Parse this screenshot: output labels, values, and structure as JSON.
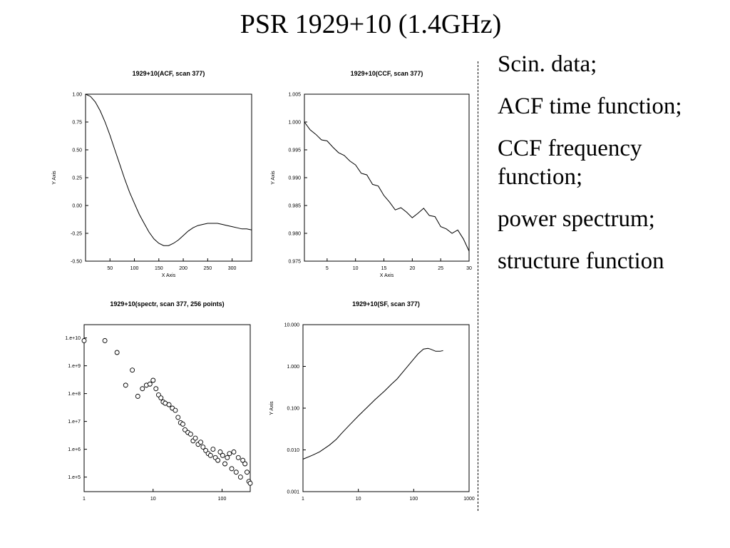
{
  "slide": {
    "title": "PSR 1929+10 (1.4GHz)"
  },
  "notes": [
    "Scin. data;",
    "ACF time function;",
    "CCF frequency function;",
    "power spectrum;",
    "structure function"
  ],
  "chart_data": [
    {
      "id": "acf",
      "type": "line",
      "title": "1929+10(ACF, scan 377)",
      "xlabel": "X Axis",
      "ylabel": "Y Axis",
      "xscale": "linear",
      "yscale": "linear",
      "xlim": [
        0,
        340
      ],
      "ylim": [
        -0.5,
        1.0
      ],
      "xticks": [
        50,
        100,
        150,
        200,
        250,
        300
      ],
      "xtick_labels": [
        "50",
        "100",
        "150",
        "200",
        "250",
        "300"
      ],
      "yticks": [
        -0.5,
        -0.25,
        0.0,
        0.25,
        0.5,
        0.75,
        1.0
      ],
      "ytick_labels": [
        "-0.50",
        "-0.25",
        "0.00",
        "0.25",
        "0.50",
        "0.75",
        "1.00"
      ],
      "grid": false,
      "series": [
        {
          "x": [
            0,
            10,
            20,
            30,
            40,
            50,
            60,
            70,
            80,
            90,
            100,
            110,
            120,
            130,
            140,
            150,
            160,
            170,
            180,
            190,
            200,
            210,
            220,
            230,
            240,
            250,
            260,
            270,
            280,
            290,
            300,
            310,
            320,
            330,
            340
          ],
          "y": [
            1.0,
            0.98,
            0.93,
            0.85,
            0.75,
            0.63,
            0.5,
            0.37,
            0.24,
            0.12,
            0.02,
            -0.08,
            -0.16,
            -0.24,
            -0.3,
            -0.34,
            -0.36,
            -0.36,
            -0.34,
            -0.31,
            -0.27,
            -0.23,
            -0.2,
            -0.18,
            -0.17,
            -0.16,
            -0.16,
            -0.16,
            -0.17,
            -0.18,
            -0.19,
            -0.2,
            -0.21,
            -0.21,
            -0.22
          ]
        }
      ]
    },
    {
      "id": "ccf",
      "type": "line",
      "title": "1929+10(CCF, scan 377)",
      "xlabel": "X Axis",
      "ylabel": "Y Axis",
      "xscale": "linear",
      "yscale": "linear",
      "xlim": [
        1,
        30
      ],
      "ylim": [
        0.975,
        1.005
      ],
      "xticks": [
        5,
        10,
        15,
        20,
        25,
        30
      ],
      "xtick_labels": [
        "5",
        "10",
        "15",
        "20",
        "25",
        "30"
      ],
      "yticks": [
        0.975,
        0.98,
        0.985,
        0.99,
        0.995,
        1.0,
        1.005
      ],
      "ytick_labels": [
        "0.975",
        "0.980",
        "0.985",
        "0.990",
        "0.995",
        "1.000",
        "1.005"
      ],
      "grid": false,
      "series": [
        {
          "x": [
            1,
            2,
            3,
            4,
            5,
            6,
            7,
            8,
            9,
            10,
            11,
            12,
            13,
            14,
            15,
            16,
            17,
            18,
            19,
            20,
            21,
            22,
            23,
            24,
            25,
            26,
            27,
            28,
            29,
            30
          ],
          "y": [
            1.0,
            0.9986,
            0.9978,
            0.9968,
            0.9966,
            0.9955,
            0.9945,
            0.994,
            0.993,
            0.9923,
            0.9908,
            0.9905,
            0.9888,
            0.9885,
            0.9868,
            0.9856,
            0.9842,
            0.9846,
            0.9838,
            0.9828,
            0.9836,
            0.9845,
            0.9832,
            0.983,
            0.9812,
            0.9808,
            0.98,
            0.9806,
            0.979,
            0.9768
          ]
        }
      ]
    },
    {
      "id": "spectrum",
      "type": "scatter",
      "title": "1929+10(spectr, scan 377, 256 points)",
      "xscale": "log",
      "yscale": "log",
      "xlim": [
        1,
        256
      ],
      "ylim": [
        30000,
        30000000000
      ],
      "xticks": [
        1,
        10,
        100
      ],
      "xtick_labels": [
        "1",
        "10",
        "100"
      ],
      "yticks": [
        100000,
        1000000,
        10000000,
        100000000,
        1000000000,
        10000000000
      ],
      "ytick_labels": [
        "1.e+5",
        "1.e+6",
        "1.e+7",
        "1.e+8",
        "1.e+9",
        "1.e+10"
      ],
      "grid": false,
      "series": [
        {
          "x": [
            1,
            2,
            3,
            4,
            5,
            6,
            7,
            8,
            9,
            10,
            11,
            12,
            13,
            14,
            15,
            17,
            19,
            21,
            23,
            25,
            27,
            29,
            32,
            35,
            38,
            41,
            45,
            49,
            53,
            58,
            63,
            68,
            74,
            80,
            87,
            94,
            102,
            110,
            119,
            128,
            138,
            148,
            160,
            172,
            185,
            200,
            215,
            230,
            245,
            256
          ],
          "y": [
            8000000000,
            8000000000,
            3000000000,
            200000000,
            700000000,
            80000000,
            150000000,
            200000000,
            220000000,
            300000000,
            150000000,
            90000000,
            70000000,
            50000000,
            45000000,
            40000000,
            30000000,
            25000000,
            14000000,
            9000000,
            8000000,
            5000000,
            4000000,
            3500000,
            2000000,
            2500000,
            1500000,
            1800000,
            1200000,
            900000,
            700000,
            600000,
            1000000,
            500000,
            400000,
            800000,
            600000,
            300000,
            500000,
            700000,
            200000,
            800000,
            150000,
            500000,
            100000,
            400000,
            300000,
            150000,
            70000,
            60000
          ]
        }
      ]
    },
    {
      "id": "sf",
      "type": "line",
      "title": "1929+10(SF, scan 377)",
      "ylabel": "Y Axis",
      "xscale": "log",
      "yscale": "log",
      "xlim": [
        1,
        1000
      ],
      "ylim": [
        0.001,
        10
      ],
      "xticks": [
        1,
        10,
        100,
        1000
      ],
      "xtick_labels": [
        "1",
        "10",
        "100",
        "1000"
      ],
      "yticks": [
        0.001,
        0.01,
        0.1,
        1,
        10
      ],
      "ytick_labels": [
        "0.001",
        "0.010",
        "0.100",
        "1.000",
        "10.000"
      ],
      "grid": false,
      "series": [
        {
          "x": [
            1,
            1.5,
            2,
            3,
            4,
            5,
            7,
            10,
            15,
            20,
            30,
            40,
            50,
            70,
            100,
            120,
            150,
            180,
            200,
            250,
            300,
            340
          ],
          "y": [
            0.006,
            0.0075,
            0.009,
            0.013,
            0.018,
            0.025,
            0.04,
            0.065,
            0.11,
            0.16,
            0.26,
            0.38,
            0.5,
            0.85,
            1.5,
            2.0,
            2.6,
            2.7,
            2.6,
            2.3,
            2.3,
            2.4
          ]
        }
      ]
    }
  ]
}
